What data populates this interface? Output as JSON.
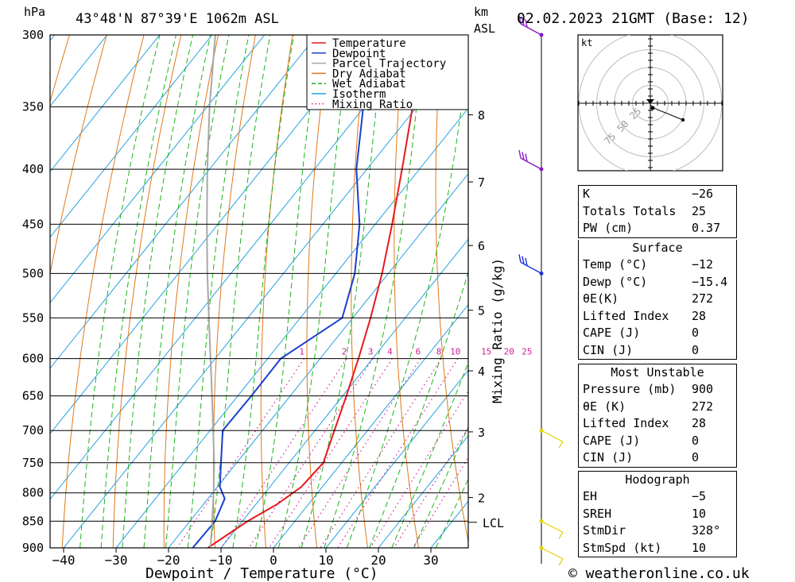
{
  "header": {
    "pressure_unit": "hPa",
    "location": "43°48'N  87°39'E  1062m  ASL",
    "km_label": "km",
    "asl_label": "ASL",
    "datetime": "02.02.2023  21GMT  (Base: 12)",
    "footer": "© weatheronline.co.uk"
  },
  "chart_data": {
    "type": "line",
    "title": "",
    "xlabel": "Dewpoint / Temperature (°C)",
    "ylabel": "hPa",
    "right_axis_label": "Mixing Ratio (g/kg)",
    "x_ticks": [
      -40,
      -30,
      -20,
      -10,
      0,
      10,
      20,
      30
    ],
    "pressure_levels": [
      300,
      350,
      400,
      450,
      500,
      550,
      600,
      650,
      700,
      750,
      800,
      850,
      900
    ],
    "plim": [
      300,
      900
    ],
    "skew": "skew-T log-p",
    "km_ticks": [
      {
        "km": "2",
        "p": 808
      },
      {
        "km": "3",
        "p": 702
      },
      {
        "km": "4",
        "p": 616
      },
      {
        "km": "5",
        "p": 541
      },
      {
        "km": "6",
        "p": 471
      },
      {
        "km": "7",
        "p": 411
      },
      {
        "km": "8",
        "p": 356
      }
    ],
    "lcl": {
      "label": "LCL",
      "p": 852
    },
    "mixing_ratio_labels": [
      "1",
      "2",
      "3",
      "4",
      "6",
      "8",
      "10",
      "15",
      "20",
      "25"
    ],
    "legend": [
      {
        "name": "Temperature",
        "color": "#e8191e",
        "style": "solid"
      },
      {
        "name": "Dewpoint",
        "color": "#1b3fd1",
        "style": "solid"
      },
      {
        "name": "Parcel Trajectory",
        "color": "#a8a8a8",
        "style": "solid"
      },
      {
        "name": "Dry Adiabat",
        "color": "#e07818",
        "style": "solid"
      },
      {
        "name": "Wet Adiabat",
        "color": "#1cb41c",
        "style": "dashed"
      },
      {
        "name": "Isotherm",
        "color": "#20a0e0",
        "style": "solid"
      },
      {
        "name": "Mixing Ratio",
        "color": "#d01f9a",
        "style": "dotted"
      }
    ],
    "series": [
      {
        "name": "Temperature",
        "points": [
          [
            900,
            -12.5
          ],
          [
            850,
            -9
          ],
          [
            820,
            -6
          ],
          [
            790,
            -4
          ],
          [
            750,
            -3.5
          ],
          [
            700,
            -6.3
          ],
          [
            650,
            -9.3
          ],
          [
            600,
            -12.7
          ],
          [
            550,
            -16.6
          ],
          [
            500,
            -21.2
          ],
          [
            450,
            -26.8
          ],
          [
            400,
            -33.3
          ],
          [
            350,
            -40.8
          ],
          [
            300,
            -50
          ]
        ]
      },
      {
        "name": "Dewpoint",
        "points": [
          [
            900,
            -15.4
          ],
          [
            850,
            -15.2
          ],
          [
            810,
            -16.8
          ],
          [
            790,
            -19.5
          ],
          [
            750,
            -23
          ],
          [
            700,
            -27.6
          ],
          [
            650,
            -27.4
          ],
          [
            600,
            -27.5
          ],
          [
            550,
            -22
          ],
          [
            500,
            -26.4
          ],
          [
            450,
            -33
          ],
          [
            400,
            -42
          ],
          [
            350,
            -50.2
          ],
          [
            300,
            -60.5
          ]
        ]
      },
      {
        "name": "Parcel Trajectory",
        "points": [
          [
            900,
            -12
          ],
          [
            852,
            -15.6
          ],
          [
            800,
            -19.8
          ],
          [
            750,
            -24.3
          ],
          [
            700,
            -29.4
          ],
          [
            650,
            -34.9
          ],
          [
            600,
            -40.9
          ],
          [
            550,
            -47.4
          ],
          [
            500,
            -54.5
          ],
          [
            450,
            -62.1
          ],
          [
            400,
            -70.4
          ],
          [
            350,
            -79.5
          ],
          [
            300,
            -89.4
          ]
        ]
      }
    ],
    "wind_barbs": [
      {
        "p": 300,
        "color": "#8a18c8"
      },
      {
        "p": 400,
        "color": "#8a18c8"
      },
      {
        "p": 500,
        "color": "#1e32d8"
      },
      {
        "p": 700,
        "color": "#e0d200"
      },
      {
        "p": 850,
        "color": "#e0d200"
      },
      {
        "p": 900,
        "color": "#e0d200"
      }
    ],
    "hodograph": {
      "unit": "kt",
      "ring_labels": [
        "25",
        "50",
        "75"
      ]
    }
  },
  "indices": {
    "rows": [
      {
        "label": "K",
        "value": "-26"
      },
      {
        "label": "Totals Totals",
        "value": "25"
      },
      {
        "label": "PW (cm)",
        "value": "0.37"
      }
    ]
  },
  "surface": {
    "title": "Surface",
    "rows": [
      {
        "label": "Temp (°C)",
        "value": "-12"
      },
      {
        "label": "Dewp (°C)",
        "value": "-15.4"
      },
      {
        "label": "θE(K)",
        "value": "272"
      },
      {
        "label": "Lifted Index",
        "value": "28"
      },
      {
        "label": "CAPE (J)",
        "value": "0"
      },
      {
        "label": "CIN (J)",
        "value": "0"
      }
    ]
  },
  "most_unstable": {
    "title": "Most Unstable",
    "rows": [
      {
        "label": "Pressure (mb)",
        "value": "900"
      },
      {
        "label": "θE (K)",
        "value": "272"
      },
      {
        "label": "Lifted Index",
        "value": "28"
      },
      {
        "label": "CAPE (J)",
        "value": "0"
      },
      {
        "label": "CIN (J)",
        "value": "0"
      }
    ]
  },
  "hodograph_table": {
    "title": "Hodograph",
    "rows": [
      {
        "label": "EH",
        "value": "-5"
      },
      {
        "label": "SREH",
        "value": "10"
      },
      {
        "label": "StmDir",
        "value": "328°"
      },
      {
        "label": "StmSpd (kt)",
        "value": "10"
      }
    ]
  }
}
